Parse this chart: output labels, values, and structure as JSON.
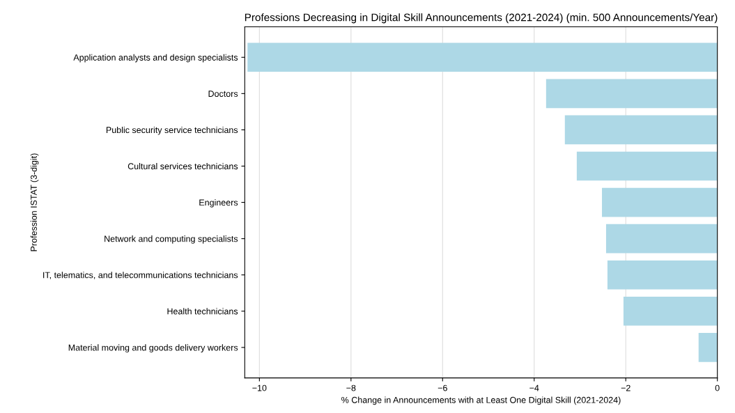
{
  "chart_data": {
    "type": "bar",
    "orientation": "horizontal",
    "title": "Professions Decreasing in Digital Skill Announcements (2021-2024) (min. 500 Announcements/Year)",
    "xlabel": "% Change in Announcements with at Least One Digital Skill (2021-2024)",
    "ylabel": "Profession ISTAT (3-digit)",
    "categories": [
      "Application analysts and design specialists",
      "Doctors",
      "Public security service technicians",
      "Cultural services technicians",
      "Engineers",
      "Network and computing specialists",
      "IT, telematics, and telecommunications technicians",
      "Health technicians",
      "Material moving and goods delivery workers"
    ],
    "values": [
      -10.26,
      -3.74,
      -3.33,
      -3.07,
      -2.52,
      -2.43,
      -2.4,
      -2.05,
      -0.41
    ],
    "color": "#add8e6",
    "xlim": [
      -10.32,
      0
    ],
    "xticks": [
      {
        "value": -10,
        "label": "−10"
      },
      {
        "value": -8,
        "label": "−8"
      },
      {
        "value": -6,
        "label": "−6"
      },
      {
        "value": -4,
        "label": "−4"
      },
      {
        "value": -2,
        "label": "−2"
      },
      0
    ],
    "grid": "x"
  }
}
